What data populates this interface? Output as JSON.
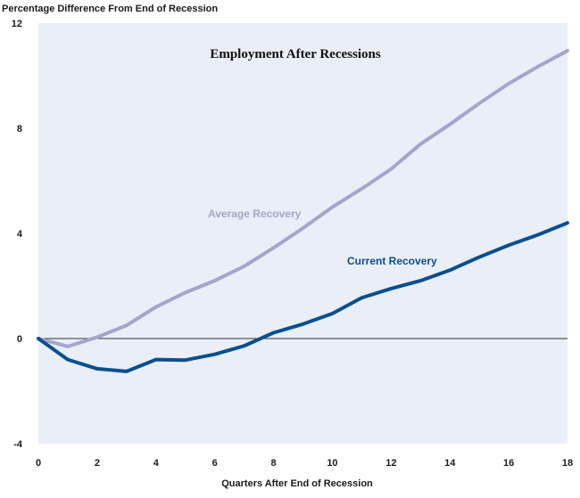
{
  "chart_data": {
    "type": "line",
    "title": "Employment After Recessions",
    "ylabel": "Percentage Difference From End of Recession",
    "xlabel": "Quarters After End of Recession",
    "xlim": [
      0,
      18
    ],
    "ylim": [
      -4,
      12
    ],
    "x_ticks": [
      0,
      2,
      4,
      6,
      8,
      10,
      12,
      14,
      16,
      18
    ],
    "y_ticks": [
      -4,
      0,
      4,
      8,
      12
    ],
    "grid": false,
    "plot_background": "#e9eef7",
    "zero_line_color": "#333333",
    "series": [
      {
        "name": "Average Recovery",
        "color": "#a2a6cc",
        "x": [
          0,
          1,
          2,
          3,
          4,
          5,
          6,
          7,
          8,
          9,
          10,
          11,
          12,
          13,
          14,
          15,
          16,
          17,
          18
        ],
        "values": [
          0,
          -0.3,
          0.05,
          0.5,
          1.2,
          1.75,
          2.2,
          2.75,
          3.45,
          4.2,
          5.0,
          5.7,
          6.45,
          7.4,
          8.15,
          8.95,
          9.7,
          10.35,
          10.95
        ]
      },
      {
        "name": "Current Recovery",
        "color": "#0b4f8e",
        "x": [
          0,
          1,
          2,
          3,
          4,
          5,
          6,
          7,
          8,
          9,
          10,
          11,
          12,
          13,
          14,
          15,
          16,
          17,
          18
        ],
        "values": [
          0,
          -0.8,
          -1.15,
          -1.25,
          -0.8,
          -0.82,
          -0.6,
          -0.28,
          0.22,
          0.55,
          0.95,
          1.55,
          1.9,
          2.2,
          2.6,
          3.1,
          3.55,
          3.95,
          4.4
        ]
      }
    ]
  }
}
